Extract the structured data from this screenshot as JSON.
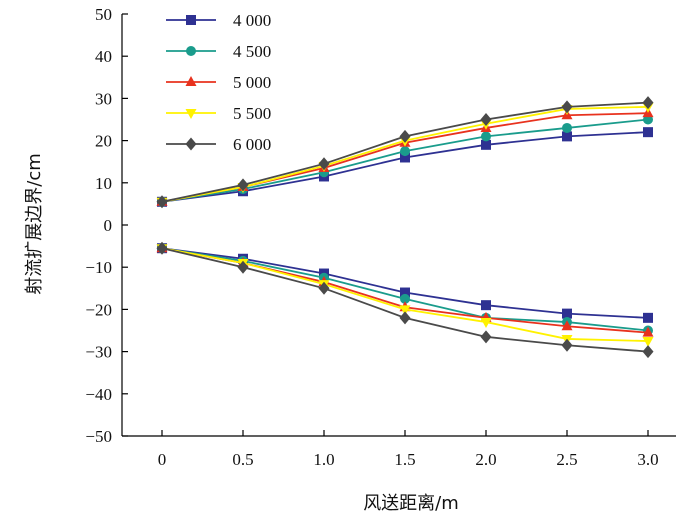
{
  "chart_data": {
    "type": "line",
    "xlabel": "风送距离/m",
    "ylabel": "射流扩展边界/cm",
    "xlim": [
      0,
      3.0
    ],
    "ylim": [
      -50,
      50
    ],
    "x": [
      0,
      0.5,
      1.0,
      1.5,
      2.0,
      2.5,
      3.0
    ],
    "x_tick_labels": [
      "0",
      "0.5",
      "1.0",
      "1.5",
      "2.0",
      "2.5",
      "3.0"
    ],
    "y_ticks": [
      50,
      40,
      30,
      20,
      10,
      0,
      -10,
      -20,
      -30,
      -40,
      -50
    ],
    "y_tick_labels": [
      "50",
      "40",
      "30",
      "20",
      "10",
      "0",
      "−10",
      "−20",
      "−30",
      "−40",
      "−50"
    ],
    "legend_position": "top-left",
    "grid": false,
    "series": [
      {
        "name": "4 000",
        "color": "#2e3192",
        "marker": "square",
        "upper": [
          5.5,
          8.0,
          11.5,
          16.0,
          19.0,
          21.0,
          22.0
        ],
        "lower": [
          -5.5,
          -8.0,
          -11.5,
          -16.0,
          -19.0,
          -21.0,
          -22.0
        ]
      },
      {
        "name": "4 500",
        "color": "#1a9c8c",
        "marker": "circle",
        "upper": [
          5.5,
          8.5,
          12.5,
          17.5,
          21.0,
          23.0,
          25.0
        ],
        "lower": [
          -5.5,
          -8.5,
          -12.5,
          -17.5,
          -22.0,
          -23.0,
          -25.0
        ]
      },
      {
        "name": "5 000",
        "color": "#e8321e",
        "marker": "triangle-up",
        "upper": [
          5.5,
          9.0,
          13.5,
          19.5,
          23.0,
          26.0,
          26.5
        ],
        "lower": [
          -5.5,
          -9.0,
          -13.5,
          -19.5,
          -22.0,
          -24.0,
          -25.5
        ]
      },
      {
        "name": "5 500",
        "color": "#fff200",
        "marker": "triangle-down",
        "upper": [
          5.5,
          9.0,
          14.0,
          20.0,
          24.0,
          27.5,
          28.0
        ],
        "lower": [
          -5.5,
          -9.0,
          -14.0,
          -20.0,
          -23.0,
          -27.0,
          -27.5
        ]
      },
      {
        "name": "6 000",
        "color": "#4a4a4a",
        "marker": "diamond",
        "upper": [
          5.5,
          9.5,
          14.5,
          21.0,
          25.0,
          28.0,
          29.0
        ],
        "lower": [
          -5.5,
          -10.0,
          -15.0,
          -22.0,
          -26.5,
          -28.5,
          -30.0
        ]
      }
    ]
  }
}
